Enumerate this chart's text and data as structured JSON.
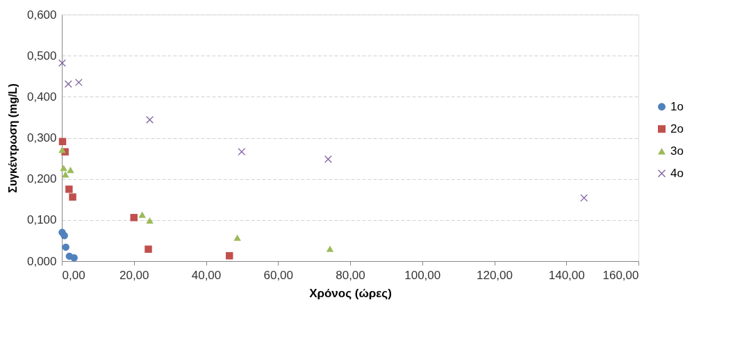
{
  "chart_data": {
    "type": "scatter",
    "xlabel": "Χρόνος (ώρες)",
    "ylabel": "Συγκέντρωση (mg/L)",
    "xlim": [
      0,
      160
    ],
    "ylim": [
      0,
      0.6
    ],
    "xticks": [
      {
        "value": 0,
        "label": "0,00"
      },
      {
        "value": 20,
        "label": "20,00"
      },
      {
        "value": 40,
        "label": "40,00"
      },
      {
        "value": 60,
        "label": "60,00"
      },
      {
        "value": 80,
        "label": "80,00"
      },
      {
        "value": 100,
        "label": "100,00"
      },
      {
        "value": 120,
        "label": "120,00"
      },
      {
        "value": 140,
        "label": "140,00"
      },
      {
        "value": 160,
        "label": "160,00"
      }
    ],
    "yticks": [
      {
        "value": 0,
        "label": "0,000"
      },
      {
        "value": 0.1,
        "label": "0,100"
      },
      {
        "value": 0.2,
        "label": "0,200"
      },
      {
        "value": 0.3,
        "label": "0,300"
      },
      {
        "value": 0.4,
        "label": "0,400"
      },
      {
        "value": 0.5,
        "label": "0,500"
      },
      {
        "value": 0.6,
        "label": "0,600"
      }
    ],
    "grid": "y",
    "legend": "right",
    "series": [
      {
        "name": "1o",
        "color": "#4f81bd",
        "marker": "circle",
        "x": [
          0.1,
          0.7,
          1.1,
          2.1,
          3.4
        ],
        "values": [
          0.07,
          0.062,
          0.034,
          0.012,
          0.008
        ]
      },
      {
        "name": "2o",
        "color": "#c0504d",
        "marker": "square",
        "x": [
          0.2,
          0.9,
          2,
          3,
          20,
          24,
          46.5
        ],
        "values": [
          0.291,
          0.266,
          0.175,
          0.156,
          0.106,
          0.029,
          0.013
        ]
      },
      {
        "name": "3o",
        "color": "#9bbb59",
        "marker": "triangle",
        "x": [
          0.1,
          0.5,
          1,
          2.4,
          22.3,
          24.4,
          48.7,
          74.4
        ],
        "values": [
          0.271,
          0.227,
          0.211,
          0.222,
          0.113,
          0.099,
          0.057,
          0.03
        ]
      },
      {
        "name": "4o",
        "color": "#8064a2",
        "marker": "cross",
        "x": [
          0.1,
          1.8,
          4.7,
          24.4,
          49.9,
          73.9,
          144.9
        ],
        "values": [
          0.482,
          0.431,
          0.435,
          0.344,
          0.266,
          0.248,
          0.154
        ]
      }
    ]
  }
}
